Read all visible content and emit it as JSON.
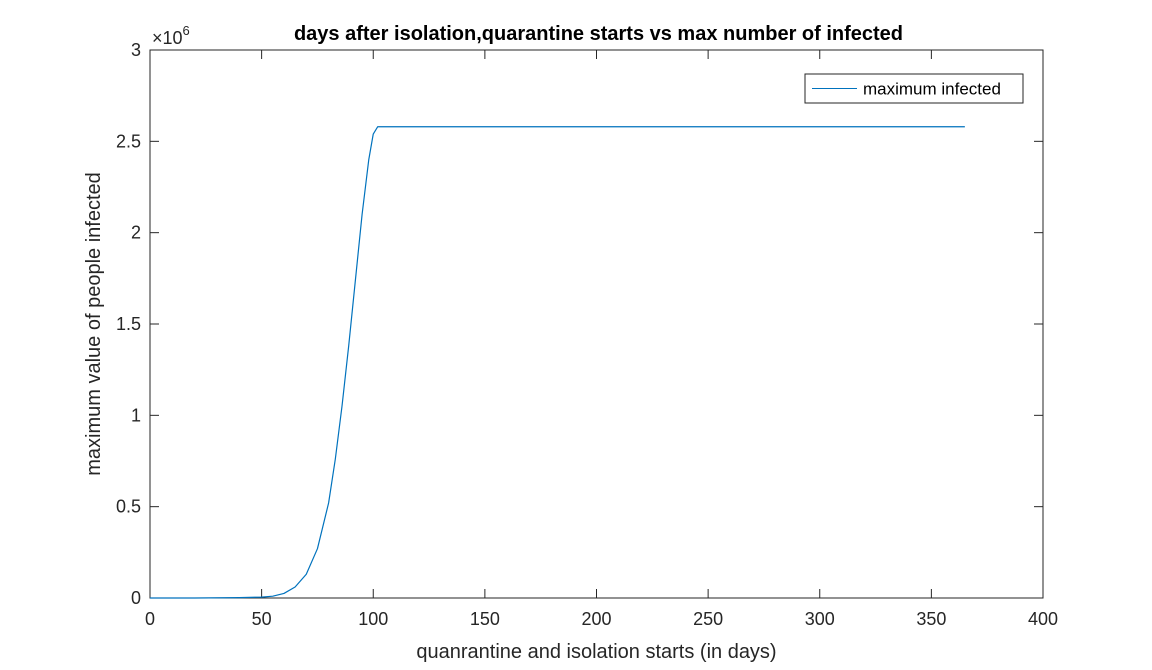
{
  "chart_data": {
    "type": "line",
    "title": "days after isolation,quarantine starts vs max number of infected",
    "xlabel": "quanrantine and isolation starts (in days)",
    "ylabel": "maximum value of people infected",
    "xlim": [
      0,
      400
    ],
    "ylim": [
      0,
      3
    ],
    "y_multiplier": {
      "base": "×10",
      "exponent": "6"
    },
    "xticks": [
      0,
      50,
      100,
      150,
      200,
      250,
      300,
      350,
      400
    ],
    "xtick_labels": [
      "0",
      "50",
      "100",
      "150",
      "200",
      "250",
      "300",
      "350",
      "400"
    ],
    "yticks": [
      0,
      0.5,
      1,
      1.5,
      2,
      2.5,
      3
    ],
    "ytick_labels": [
      "0",
      "0.5",
      "1",
      "1.5",
      "2",
      "2.5",
      "3"
    ],
    "grid": false,
    "legend_position": "top-right",
    "series": [
      {
        "name": "maximum infected",
        "color": "#0072BD",
        "x": [
          0,
          20,
          40,
          50,
          55,
          60,
          65,
          70,
          75,
          80,
          83,
          86,
          89,
          92,
          95,
          98,
          100,
          102,
          105,
          150,
          200,
          250,
          300,
          365
        ],
        "y": [
          0.0,
          0.0,
          0.002,
          0.005,
          0.01,
          0.025,
          0.06,
          0.13,
          0.27,
          0.52,
          0.76,
          1.05,
          1.38,
          1.74,
          2.1,
          2.4,
          2.54,
          2.58,
          2.58,
          2.58,
          2.58,
          2.58,
          2.58,
          2.58
        ]
      }
    ]
  }
}
